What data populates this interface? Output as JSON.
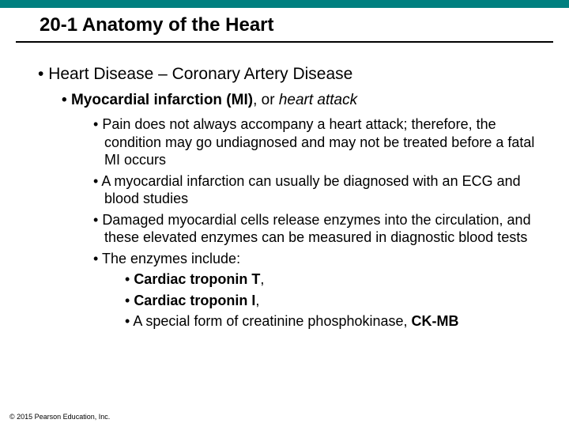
{
  "colors": {
    "top_bar": "#008080",
    "title_underline": "#000000",
    "background": "#ffffff",
    "text": "#000000"
  },
  "title": "20-1 Anatomy of the Heart",
  "heading": "Heart Disease – Coronary Artery Disease",
  "sub_bold": "Myocardial infarction (MI)",
  "sub_mid": ", or ",
  "sub_italic": "heart attack",
  "bullets": [
    "Pain does not always accompany a heart attack; therefore, the condition may go undiagnosed and may not be treated before a fatal MI occurs",
    "A myocardial infarction can usually be diagnosed with an ECG and blood studies",
    "Damaged myocardial cells release enzymes into the circulation, and these elevated enzymes can be measured in diagnostic blood tests",
    "The enzymes include:"
  ],
  "enzymes": {
    "e1": "Cardiac troponin T",
    "e1_tail": ",",
    "e2": "Cardiac troponin I",
    "e2_tail": ",",
    "e3_pre": "A special form of creatinine phosphokinase, ",
    "e3_bold": "CK-MB"
  },
  "copyright": "© 2015 Pearson Education, Inc."
}
